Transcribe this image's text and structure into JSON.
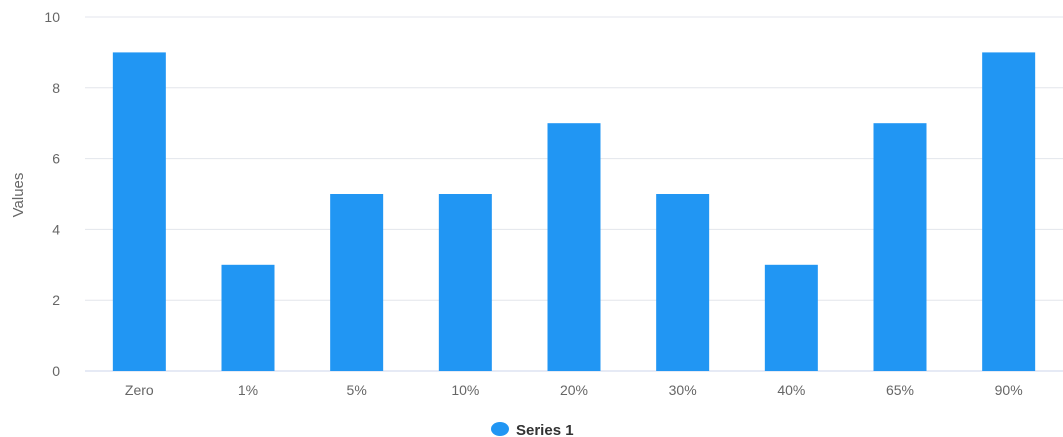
{
  "chart_data": {
    "type": "bar",
    "title": "",
    "xlabel": "",
    "ylabel": "Values",
    "categories": [
      "Zero",
      "1%",
      "5%",
      "10%",
      "20%",
      "30%",
      "40%",
      "65%",
      "90%"
    ],
    "series": [
      {
        "name": "Series 1",
        "values": [
          9,
          3,
          5,
          5,
          7,
          5,
          3,
          7,
          9
        ],
        "color": "#2196F3"
      }
    ],
    "ylim": [
      0,
      10
    ],
    "yticks": [
      0,
      2,
      4,
      6,
      8,
      10
    ],
    "grid": true,
    "legend_position": "bottom-center",
    "colors": {
      "grid": "#E3E6EC",
      "axis": "#CCD6EB",
      "tick_text": "#666666",
      "legend_text": "#333333"
    }
  }
}
